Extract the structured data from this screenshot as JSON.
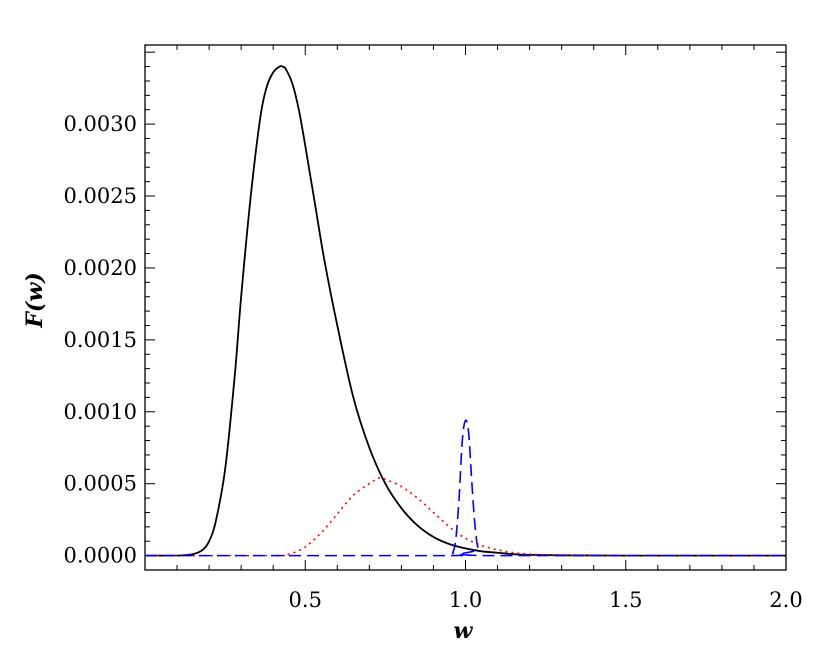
{
  "chart_data": {
    "type": "line",
    "title": "",
    "xlabel": "w",
    "ylabel": "F(w)",
    "xlim": [
      0.0,
      2.0
    ],
    "ylim": [
      -0.0001,
      0.00355
    ],
    "grid": false,
    "legend": "none",
    "x_ticks": [
      0.5,
      1.0,
      1.5,
      2.0
    ],
    "x_tick_labels": [
      "0.5",
      "1.0",
      "1.5",
      "2.0"
    ],
    "y_ticks": [
      0.0,
      0.0005,
      0.001,
      0.0015,
      0.002,
      0.0025,
      0.003
    ],
    "y_tick_labels": [
      "0.0000",
      "0.0005",
      "0.0010",
      "0.0015",
      "0.0020",
      "0.0025",
      "0.0030"
    ],
    "series": [
      {
        "color": "#000000",
        "style": "solid",
        "x": [
          0.0,
          0.1,
          0.15,
          0.18,
          0.2,
          0.22,
          0.25,
          0.28,
          0.3,
          0.33,
          0.36,
          0.38,
          0.4,
          0.42,
          0.43,
          0.44,
          0.46,
          0.48,
          0.5,
          0.53,
          0.56,
          0.6,
          0.65,
          0.7,
          0.75,
          0.8,
          0.85,
          0.9,
          0.95,
          1.0,
          1.05,
          1.1,
          1.15,
          1.2,
          1.3,
          1.5,
          1.8,
          2.0
        ],
        "y": [
          0.0,
          0.0,
          1e-05,
          4e-05,
          0.0001,
          0.00023,
          0.0006,
          0.00125,
          0.0018,
          0.0025,
          0.00305,
          0.00326,
          0.00336,
          0.0034,
          0.0034,
          0.00338,
          0.00328,
          0.0031,
          0.00285,
          0.00245,
          0.00205,
          0.0016,
          0.0011,
          0.00075,
          0.0005,
          0.00033,
          0.00021,
          0.00013,
          8e-05,
          5e-05,
          3e-05,
          2e-05,
          1e-05,
          5e-06,
          2e-06,
          0.0,
          0.0,
          0.0
        ]
      },
      {
        "color": "#ff0000",
        "style": "dotted",
        "x": [
          0.0,
          0.4,
          0.45,
          0.5,
          0.55,
          0.6,
          0.65,
          0.7,
          0.73,
          0.75,
          0.8,
          0.85,
          0.9,
          0.95,
          1.0,
          1.05,
          1.1,
          1.15,
          1.2,
          1.3,
          1.5,
          2.0
        ],
        "y": [
          0.0,
          0.0,
          1e-05,
          6e-05,
          0.00016,
          0.00029,
          0.00042,
          0.0005,
          0.00054,
          0.00053,
          0.00048,
          0.0004,
          0.0003,
          0.0002,
          0.00012,
          7e-05,
          4e-05,
          2e-05,
          1e-05,
          3e-06,
          0.0,
          0.0
        ]
      },
      {
        "color": "#0000ff",
        "style": "dashed",
        "x": [
          0.0,
          0.94,
          0.96,
          0.97,
          0.98,
          0.99,
          1.0,
          1.01,
          1.02,
          1.03,
          1.04,
          1.06,
          2.0
        ],
        "y": [
          0.0,
          0.0,
          2e-05,
          0.00012,
          0.0004,
          0.0008,
          0.00094,
          0.00085,
          0.0005,
          0.0002,
          5e-05,
          0.0,
          0.0
        ]
      }
    ]
  }
}
